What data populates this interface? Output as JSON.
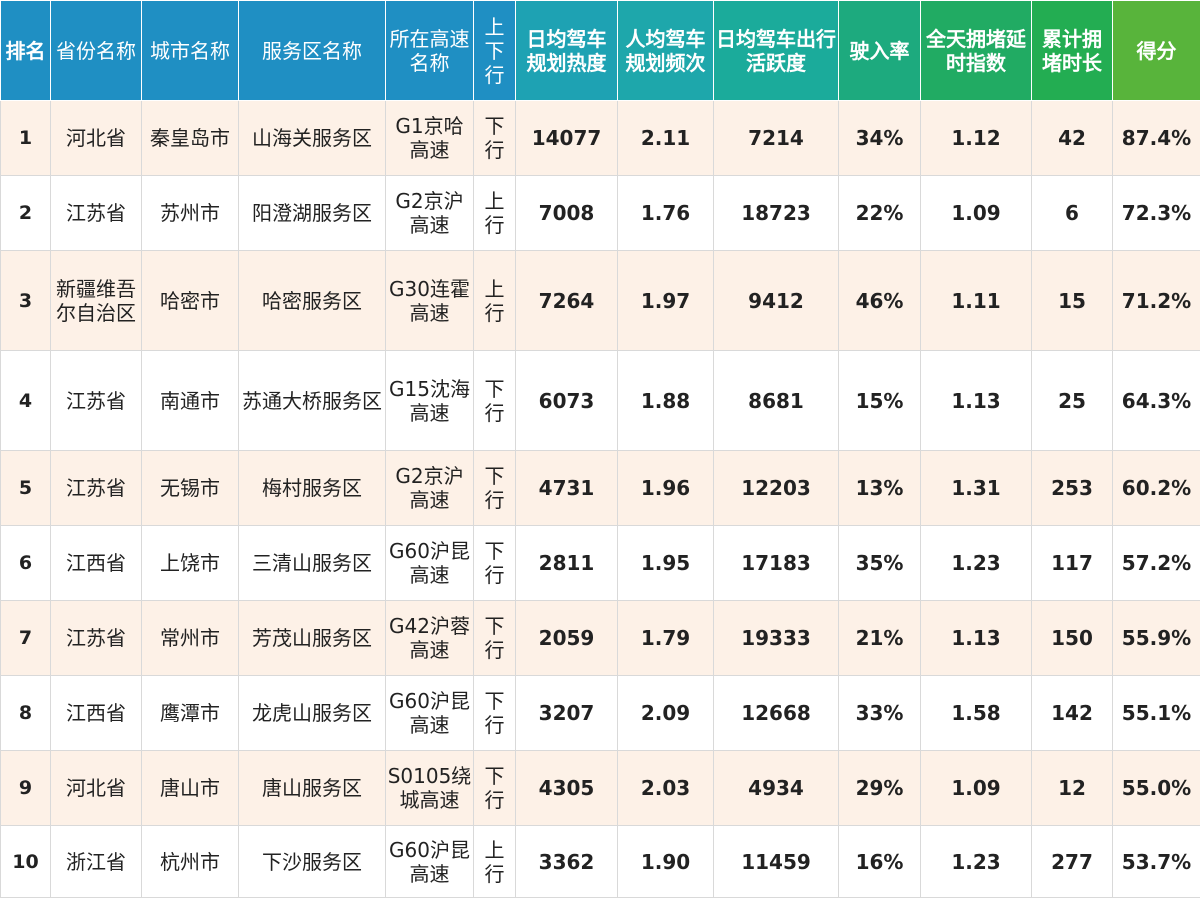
{
  "header": {
    "rank": "排名",
    "province": "省份名称",
    "city": "城市名称",
    "service_area": "服务区名称",
    "highway": "所在高速名称",
    "direction": "上下行",
    "daily_heat": "日均驾车规划热度",
    "per_capita_freq": "人均驾车规划频次",
    "daily_activity": "日均驾车出行活跃度",
    "entry_rate": "驶入率",
    "congestion_index": "全天拥堵延时指数",
    "congestion_hours": "累计拥堵时长",
    "score": "得分"
  },
  "colors": {
    "header_blue": "#1f8fc3",
    "header_teal": "#1bab9b",
    "header_green": "#23ad52",
    "header_lime": "#58b43b",
    "row_odd": "#fdf1e7",
    "row_even": "#ffffff"
  },
  "rows": [
    {
      "rank": "1",
      "province": "河北省",
      "city": "秦皇岛市",
      "service_area": "山海关服务区",
      "highway": "G1京哈高速",
      "direction": "下行",
      "daily_heat": "14077",
      "per_capita_freq": "2.11",
      "daily_activity": "7214",
      "entry_rate": "34%",
      "congestion_index": "1.12",
      "congestion_hours": "42",
      "score": "87.4%"
    },
    {
      "rank": "2",
      "province": "江苏省",
      "city": "苏州市",
      "service_area": "阳澄湖服务区",
      "highway": "G2京沪高速",
      "direction": "上行",
      "daily_heat": "7008",
      "per_capita_freq": "1.76",
      "daily_activity": "18723",
      "entry_rate": "22%",
      "congestion_index": "1.09",
      "congestion_hours": "6",
      "score": "72.3%"
    },
    {
      "rank": "3",
      "province": "新疆维吾尔自治区",
      "city": "哈密市",
      "service_area": "哈密服务区",
      "highway": "G30连霍高速",
      "direction": "上行",
      "daily_heat": "7264",
      "per_capita_freq": "1.97",
      "daily_activity": "9412",
      "entry_rate": "46%",
      "congestion_index": "1.11",
      "congestion_hours": "15",
      "score": "71.2%"
    },
    {
      "rank": "4",
      "province": "江苏省",
      "city": "南通市",
      "service_area": "苏通大桥服务区",
      "highway": "G15沈海高速",
      "direction": "下行",
      "daily_heat": "6073",
      "per_capita_freq": "1.88",
      "daily_activity": "8681",
      "entry_rate": "15%",
      "congestion_index": "1.13",
      "congestion_hours": "25",
      "score": "64.3%"
    },
    {
      "rank": "5",
      "province": "江苏省",
      "city": "无锡市",
      "service_area": "梅村服务区",
      "highway": "G2京沪高速",
      "direction": "下行",
      "daily_heat": "4731",
      "per_capita_freq": "1.96",
      "daily_activity": "12203",
      "entry_rate": "13%",
      "congestion_index": "1.31",
      "congestion_hours": "253",
      "score": "60.2%"
    },
    {
      "rank": "6",
      "province": "江西省",
      "city": "上饶市",
      "service_area": "三清山服务区",
      "highway": "G60沪昆高速",
      "direction": "下行",
      "daily_heat": "2811",
      "per_capita_freq": "1.95",
      "daily_activity": "17183",
      "entry_rate": "35%",
      "congestion_index": "1.23",
      "congestion_hours": "117",
      "score": "57.2%"
    },
    {
      "rank": "7",
      "province": "江苏省",
      "city": "常州市",
      "service_area": "芳茂山服务区",
      "highway": "G42沪蓉高速",
      "direction": "下行",
      "daily_heat": "2059",
      "per_capita_freq": "1.79",
      "daily_activity": "19333",
      "entry_rate": "21%",
      "congestion_index": "1.13",
      "congestion_hours": "150",
      "score": "55.9%"
    },
    {
      "rank": "8",
      "province": "江西省",
      "city": "鹰潭市",
      "service_area": "龙虎山服务区",
      "highway": "G60沪昆高速",
      "direction": "下行",
      "daily_heat": "3207",
      "per_capita_freq": "2.09",
      "daily_activity": "12668",
      "entry_rate": "33%",
      "congestion_index": "1.58",
      "congestion_hours": "142",
      "score": "55.1%"
    },
    {
      "rank": "9",
      "province": "河北省",
      "city": "唐山市",
      "service_area": "唐山服务区",
      "highway": "S0105绕城高速",
      "direction": "下行",
      "daily_heat": "4305",
      "per_capita_freq": "2.03",
      "daily_activity": "4934",
      "entry_rate": "29%",
      "congestion_index": "1.09",
      "congestion_hours": "12",
      "score": "55.0%"
    },
    {
      "rank": "10",
      "province": "浙江省",
      "city": "杭州市",
      "service_area": "下沙服务区",
      "highway": "G60沪昆高速",
      "direction": "上行",
      "daily_heat": "3362",
      "per_capita_freq": "1.90",
      "daily_activity": "11459",
      "entry_rate": "16%",
      "congestion_index": "1.23",
      "congestion_hours": "277",
      "score": "53.7%"
    }
  ]
}
